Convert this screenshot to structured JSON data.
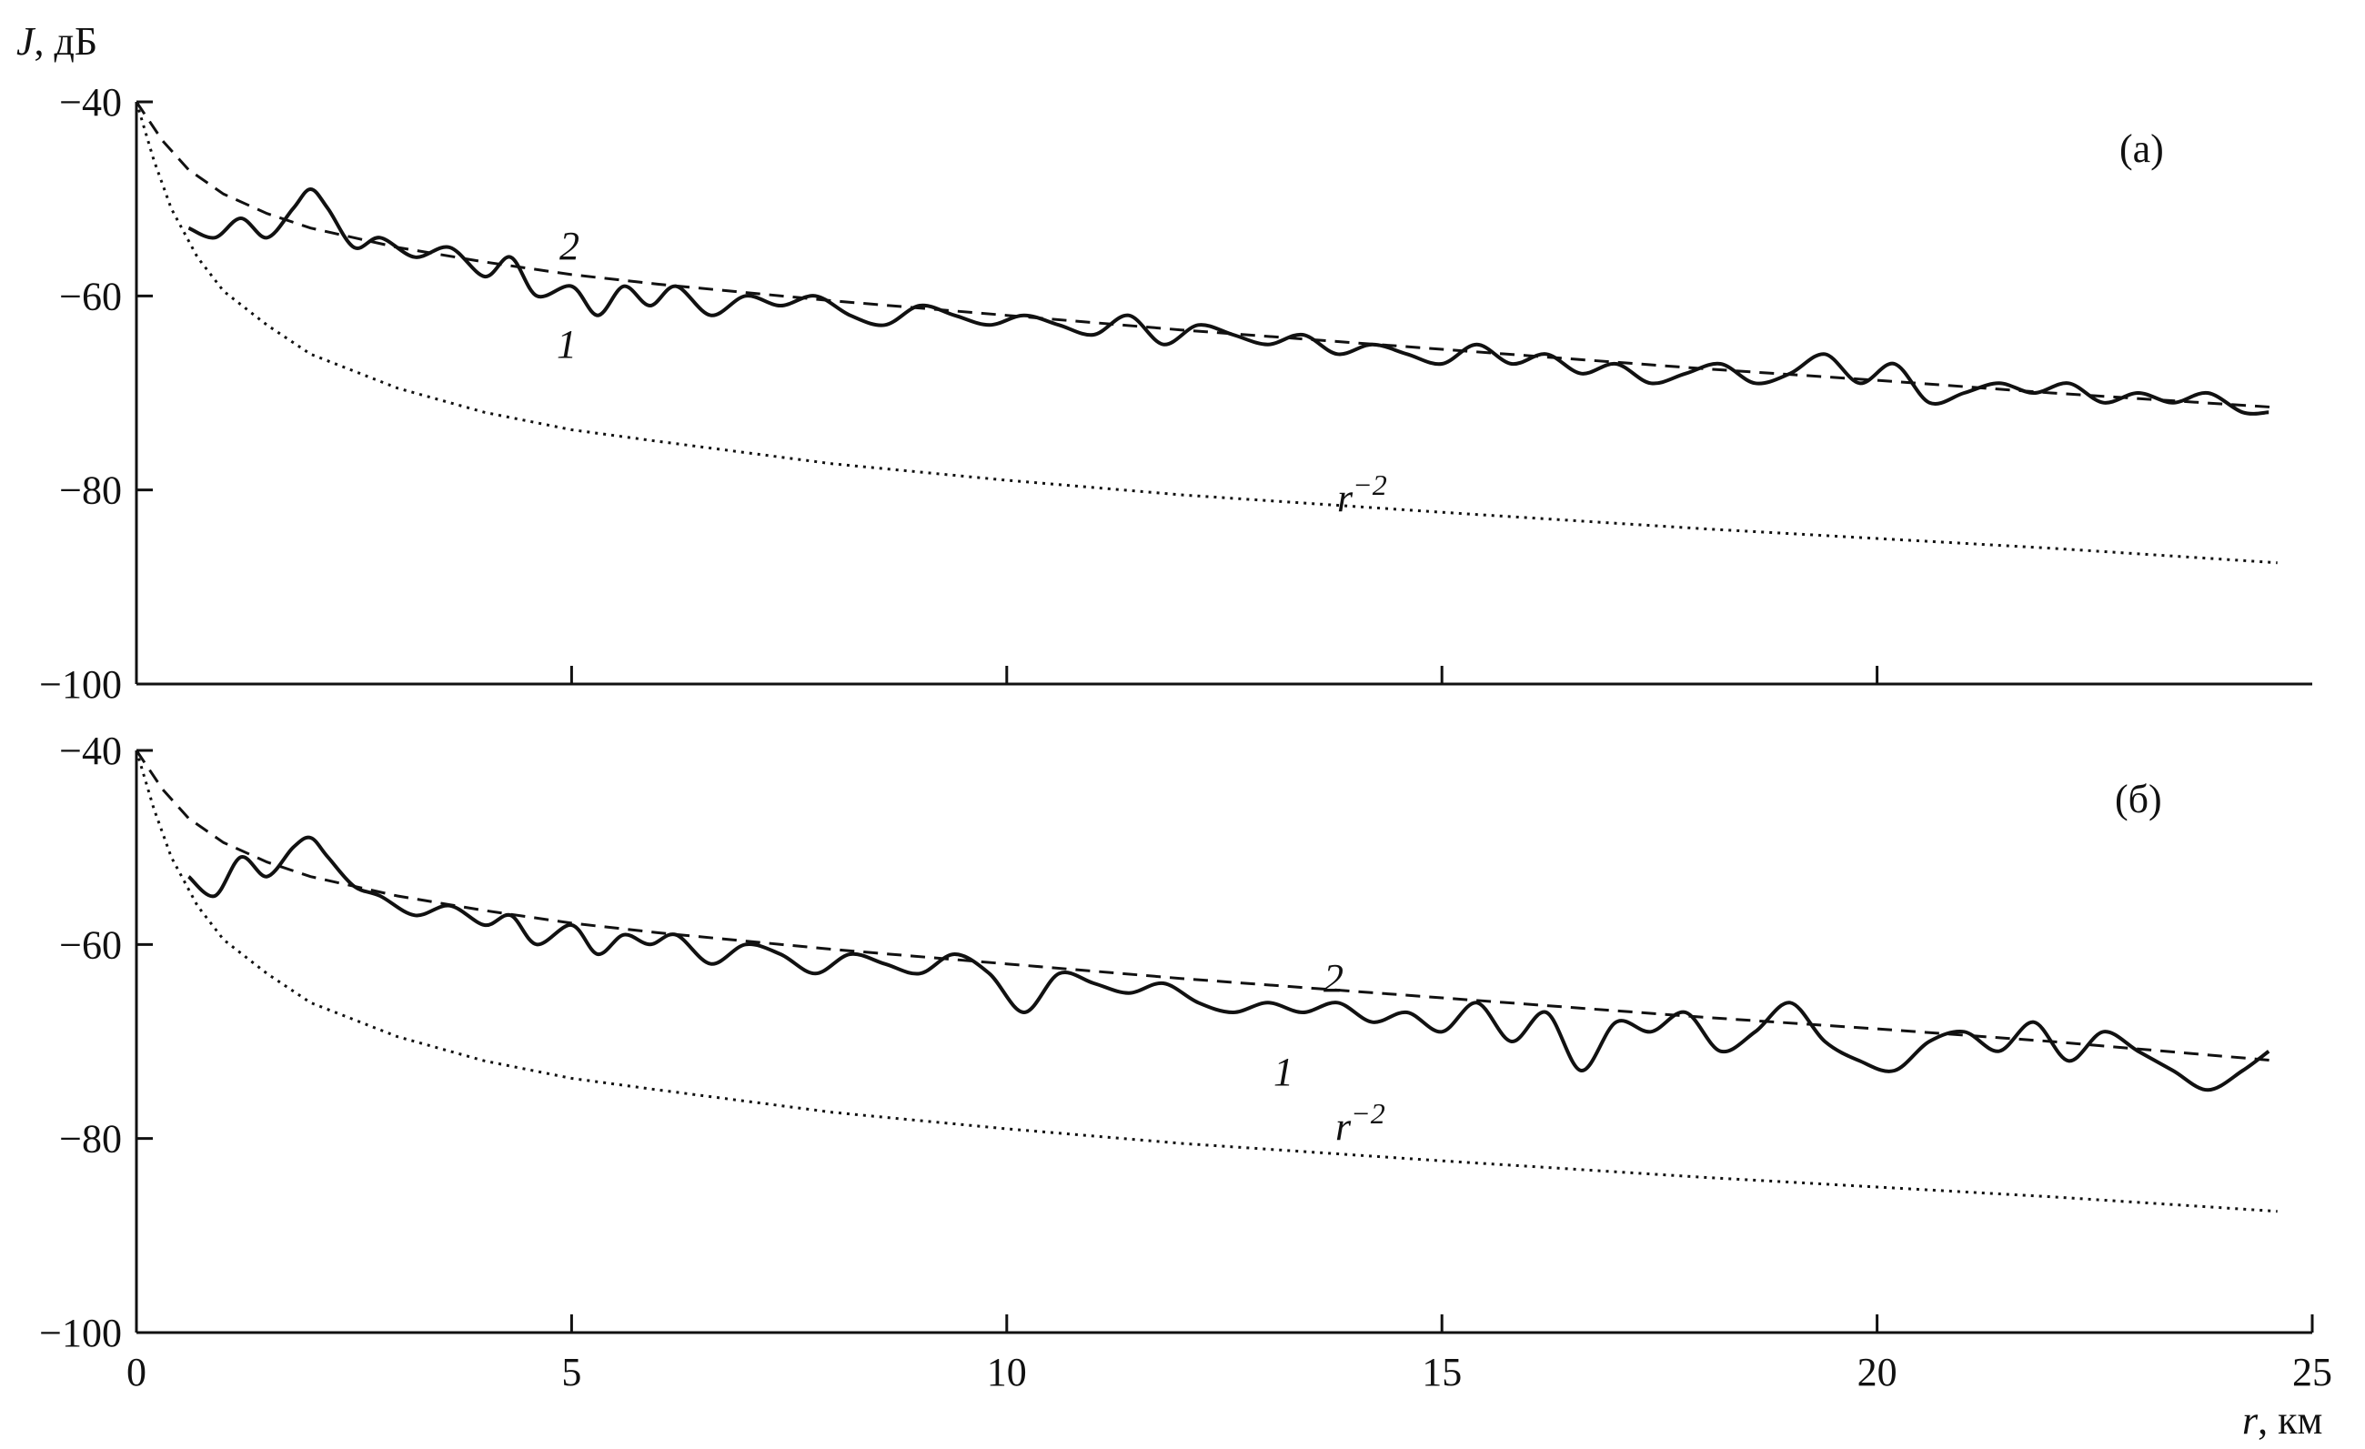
{
  "figure": {
    "ylabel_symbol": "J",
    "ylabel_unit": ", дБ",
    "xlabel_symbol": "r",
    "xlabel_unit": ", км"
  },
  "chart_data": [
    {
      "type": "line",
      "panel_label": "(а)",
      "xlim": [
        0,
        25
      ],
      "ylim": [
        -100,
        -40
      ],
      "x_ticks": [
        5,
        10,
        15,
        20
      ],
      "x_tick_labels": [],
      "y_ticks": [
        -40,
        -60,
        -80,
        -100
      ],
      "y_tick_labels": [
        "-40",
        "-60",
        "-80",
        "-100"
      ],
      "series": [
        {
          "name": "1",
          "style": "solid",
          "x": [
            0.6,
            0.9,
            1.2,
            1.5,
            1.8,
            2.0,
            2.2,
            2.5,
            2.8,
            3.2,
            3.6,
            4.0,
            4.3,
            4.6,
            5.0,
            5.3,
            5.6,
            5.9,
            6.2,
            6.6,
            7.0,
            7.4,
            7.8,
            8.2,
            8.6,
            9.0,
            9.4,
            9.8,
            10.2,
            10.6,
            11.0,
            11.4,
            11.8,
            12.2,
            12.6,
            13.0,
            13.4,
            13.8,
            14.2,
            14.6,
            15.0,
            15.4,
            15.8,
            16.2,
            16.6,
            17.0,
            17.4,
            17.8,
            18.2,
            18.6,
            19.0,
            19.4,
            19.8,
            20.2,
            20.6,
            21.0,
            21.4,
            21.8,
            22.2,
            22.6,
            23.0,
            23.4,
            23.8,
            24.2,
            24.5
          ],
          "y": [
            -53,
            -54,
            -52,
            -54,
            -51,
            -49,
            -51,
            -55,
            -54,
            -56,
            -55,
            -58,
            -56,
            -60,
            -59,
            -62,
            -59,
            -61,
            -59,
            -62,
            -60,
            -61,
            -60,
            -62,
            -63,
            -61,
            -62,
            -63,
            -62,
            -63,
            -64,
            -62,
            -65,
            -63,
            -64,
            -65,
            -64,
            -66,
            -65,
            -66,
            -67,
            -65,
            -67,
            -66,
            -68,
            -67,
            -69,
            -68,
            -67,
            -69,
            -68,
            -66,
            -69,
            -67,
            -71,
            -70,
            -69,
            -70,
            -69,
            -71,
            -70,
            -71,
            -70,
            -72,
            -72
          ]
        },
        {
          "name": "2",
          "style": "dashed",
          "x": [
            0,
            0.3,
            0.6,
            1,
            1.5,
            2,
            3,
            4,
            5,
            6,
            8,
            10,
            12,
            15,
            18,
            20,
            22,
            24.6
          ],
          "y": [
            -40,
            -44,
            -47,
            -49.5,
            -51.5,
            -53,
            -55,
            -56.5,
            -57.8,
            -58.8,
            -60.5,
            -62,
            -63.5,
            -65.5,
            -67.5,
            -68.7,
            -70,
            -71.5
          ]
        },
        {
          "name": "r^-2",
          "style": "dotted",
          "x": [
            0,
            0.2,
            0.4,
            0.7,
            1,
            1.5,
            2,
            3,
            4,
            5,
            6,
            8,
            10,
            12,
            15,
            18,
            20,
            22,
            24.6
          ],
          "y": [
            -40,
            -46,
            -51,
            -56,
            -59.5,
            -63,
            -66,
            -69.5,
            -72,
            -73.8,
            -75,
            -77.3,
            -79,
            -80.5,
            -82.3,
            -84,
            -85,
            -86,
            -87.5
          ]
        }
      ],
      "annotations": [
        "2",
        "1",
        "r^-2"
      ]
    },
    {
      "type": "line",
      "panel_label": "(б)",
      "xlim": [
        0,
        25
      ],
      "ylim": [
        -100,
        -40
      ],
      "x_ticks": [
        0,
        5,
        10,
        15,
        20,
        25
      ],
      "x_tick_labels": [
        "0",
        "5",
        "10",
        "15",
        "20",
        "25"
      ],
      "y_ticks": [
        -40,
        -60,
        -80,
        -100
      ],
      "y_tick_labels": [
        "-40",
        "-60",
        "-80",
        "-100"
      ],
      "series": [
        {
          "name": "1",
          "style": "solid",
          "x": [
            0.6,
            0.9,
            1.2,
            1.5,
            1.8,
            2.0,
            2.2,
            2.5,
            2.8,
            3.2,
            3.6,
            4.0,
            4.3,
            4.6,
            5.0,
            5.3,
            5.6,
            5.9,
            6.2,
            6.6,
            7.0,
            7.4,
            7.8,
            8.2,
            8.6,
            9.0,
            9.4,
            9.8,
            10.2,
            10.6,
            11.0,
            11.4,
            11.8,
            12.2,
            12.6,
            13.0,
            13.4,
            13.8,
            14.2,
            14.6,
            15.0,
            15.4,
            15.8,
            16.2,
            16.6,
            17.0,
            17.4,
            17.8,
            18.2,
            18.6,
            19.0,
            19.4,
            19.8,
            20.2,
            20.6,
            21.0,
            21.4,
            21.8,
            22.2,
            22.6,
            23.0,
            23.4,
            23.8,
            24.2,
            24.5
          ],
          "y": [
            -53,
            -55,
            -51,
            -53,
            -50,
            -49,
            -51,
            -54,
            -55,
            -57,
            -56,
            -58,
            -57,
            -60,
            -58,
            -61,
            -59,
            -60,
            -59,
            -62,
            -60,
            -61,
            -63,
            -61,
            -62,
            -63,
            -61,
            -63,
            -67,
            -63,
            -64,
            -65,
            -64,
            -66,
            -67,
            -66,
            -67,
            -66,
            -68,
            -67,
            -69,
            -66,
            -70,
            -67,
            -73,
            -68,
            -69,
            -67,
            -71,
            -69,
            -66,
            -70,
            -72,
            -73,
            -70,
            -69,
            -71,
            -68,
            -72,
            -69,
            -71,
            -73,
            -75,
            -73,
            -71
          ]
        },
        {
          "name": "2",
          "style": "dashed",
          "x": [
            0,
            0.3,
            0.6,
            1,
            1.5,
            2,
            3,
            4,
            5,
            6,
            8,
            10,
            12,
            15,
            18,
            20,
            22,
            24.6
          ],
          "y": [
            -40,
            -44,
            -47,
            -49.5,
            -51.5,
            -53,
            -55,
            -56.5,
            -57.8,
            -58.8,
            -60.5,
            -62,
            -63.5,
            -65.5,
            -67.5,
            -68.7,
            -70,
            -72
          ]
        },
        {
          "name": "r^-2",
          "style": "dotted",
          "x": [
            0,
            0.2,
            0.4,
            0.7,
            1,
            1.5,
            2,
            3,
            4,
            5,
            6,
            8,
            10,
            12,
            15,
            18,
            20,
            22,
            24.6
          ],
          "y": [
            -40,
            -46,
            -51,
            -56,
            -59.5,
            -63,
            -66,
            -69.5,
            -72,
            -73.8,
            -75,
            -77.3,
            -79,
            -80.5,
            -82.3,
            -84,
            -85,
            -86,
            -87.5
          ]
        }
      ],
      "annotations": [
        "2",
        "1",
        "r^-2"
      ]
    }
  ]
}
